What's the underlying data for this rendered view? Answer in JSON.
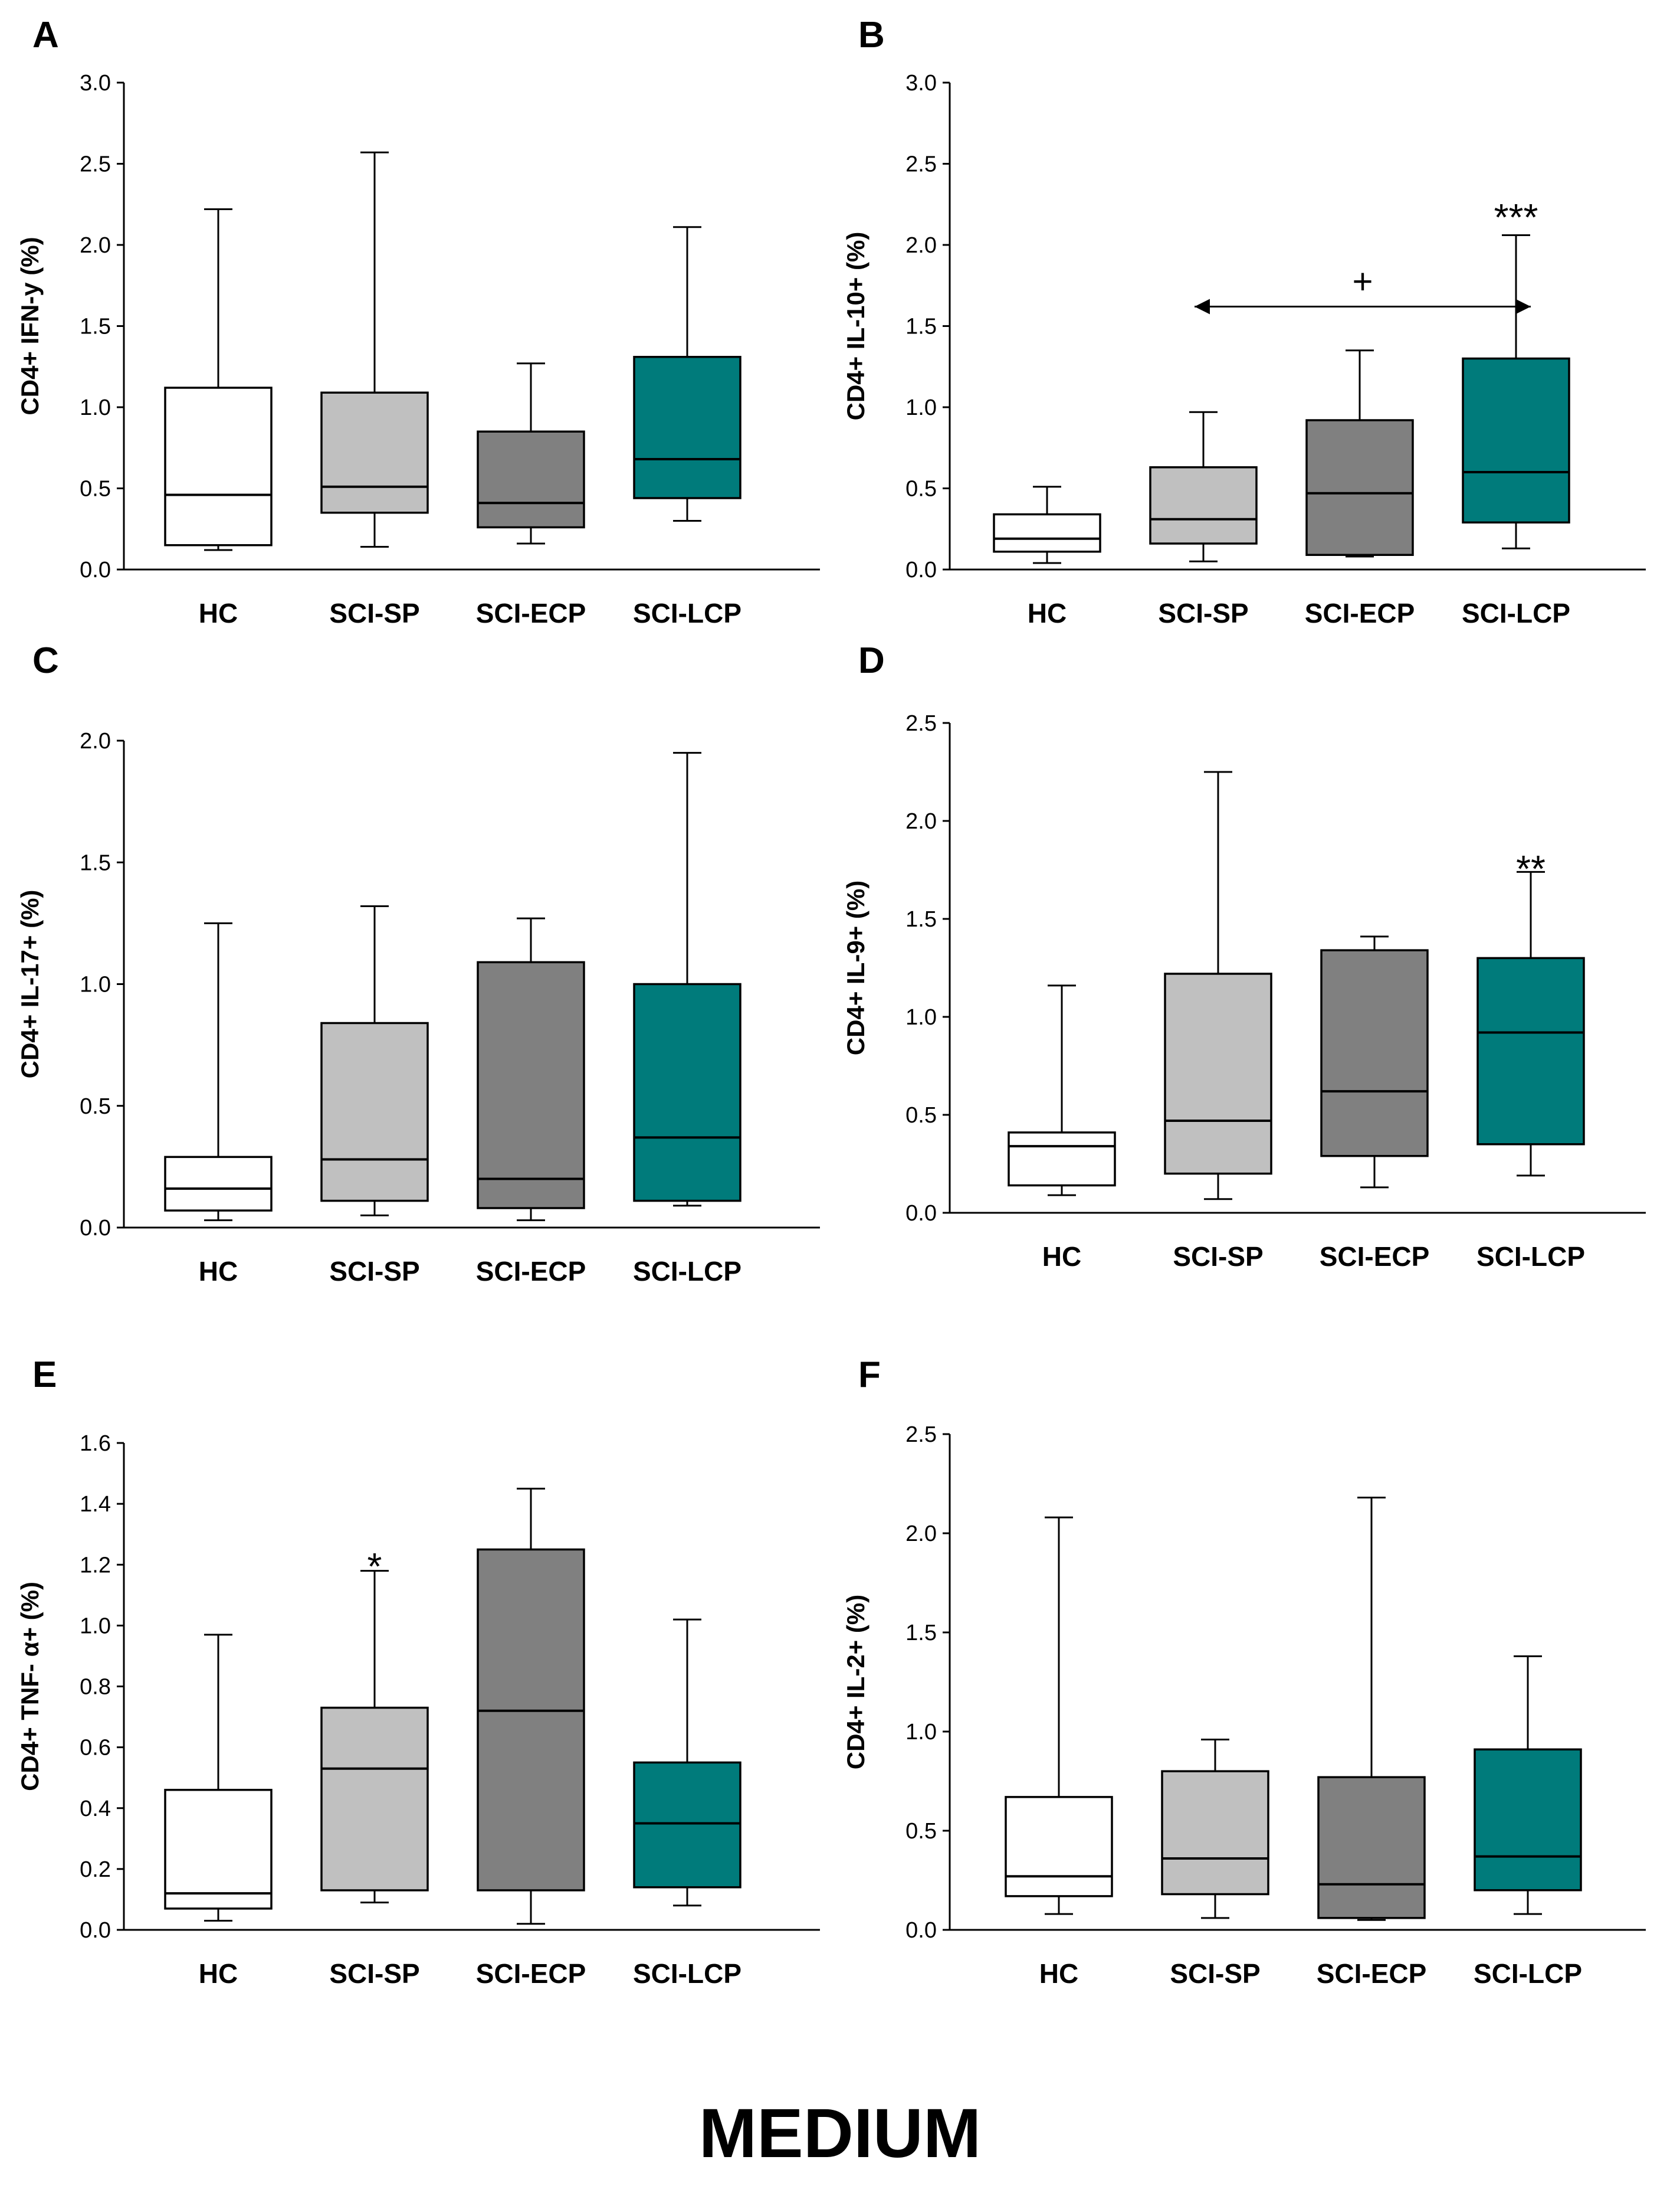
{
  "figure": {
    "footer": "MEDIUM"
  },
  "colors": {
    "HC": "#ffffff",
    "SCI-SP": "#c0c0c0",
    "SCI-ECP": "#808080",
    "SCI-LCP": "#007b7b",
    "ink": "#000000"
  },
  "chart_data": [
    {
      "panel": "A",
      "type": "box",
      "ylabel": "CD4+ IFN-y (%)",
      "ylim": [
        0,
        3.0
      ],
      "yticks": [
        "0.0",
        "0.5",
        "1.0",
        "1.5",
        "2.0",
        "2.5",
        "3.0"
      ],
      "categories": [
        "HC",
        "SCI-SP",
        "SCI-ECP",
        "SCI-LCP"
      ],
      "boxes": [
        {
          "min": 0.12,
          "q1": 0.15,
          "median": 0.46,
          "q3": 1.12,
          "max": 2.22
        },
        {
          "min": 0.14,
          "q1": 0.35,
          "median": 0.51,
          "q3": 1.09,
          "max": 2.57
        },
        {
          "min": 0.16,
          "q1": 0.26,
          "median": 0.41,
          "q3": 0.85,
          "max": 1.27
        },
        {
          "min": 0.3,
          "q1": 0.44,
          "median": 0.68,
          "q3": 1.31,
          "max": 2.11
        }
      ],
      "annotations": []
    },
    {
      "panel": "B",
      "type": "box",
      "ylabel": "CD4+ IL-10+ (%)",
      "ylim": [
        0,
        3.0
      ],
      "yticks": [
        "0.0",
        "0.5",
        "1.0",
        "1.5",
        "2.0",
        "2.5",
        "3.0"
      ],
      "categories": [
        "HC",
        "SCI-SP",
        "SCI-ECP",
        "SCI-LCP"
      ],
      "boxes": [
        {
          "min": 0.04,
          "q1": 0.11,
          "median": 0.19,
          "q3": 0.34,
          "max": 0.51
        },
        {
          "min": 0.05,
          "q1": 0.16,
          "median": 0.31,
          "q3": 0.63,
          "max": 0.97
        },
        {
          "min": 0.08,
          "q1": 0.09,
          "median": 0.47,
          "q3": 0.92,
          "max": 1.35
        },
        {
          "min": 0.13,
          "q1": 0.29,
          "median": 0.6,
          "q3": 1.3,
          "max": 2.06
        }
      ],
      "annotations": [
        {
          "type": "asterisk",
          "text": "***",
          "category": "SCI-LCP",
          "y": 2.2
        },
        {
          "type": "bracket",
          "text": "+",
          "from": "SCI-SP",
          "to": "SCI-LCP",
          "y": 1.62
        }
      ]
    },
    {
      "panel": "C",
      "type": "box",
      "ylabel": "CD4+ IL-17+ (%)",
      "ylim": [
        0,
        2.0
      ],
      "yticks": [
        "0.0",
        "0.5",
        "1.0",
        "1.5",
        "2.0"
      ],
      "categories": [
        "HC",
        "SCI-SP",
        "SCI-ECP",
        "SCI-LCP"
      ],
      "boxes": [
        {
          "min": 0.03,
          "q1": 0.07,
          "median": 0.16,
          "q3": 0.29,
          "max": 1.25
        },
        {
          "min": 0.05,
          "q1": 0.11,
          "median": 0.28,
          "q3": 0.84,
          "max": 1.32
        },
        {
          "min": 0.03,
          "q1": 0.08,
          "median": 0.2,
          "q3": 1.09,
          "max": 1.27
        },
        {
          "min": 0.09,
          "q1": 0.11,
          "median": 0.37,
          "q3": 1.0,
          "max": 1.95
        }
      ],
      "annotations": []
    },
    {
      "panel": "D",
      "type": "box",
      "ylabel": "CD4+ IL-9+ (%)",
      "ylim": [
        0,
        2.5
      ],
      "yticks": [
        "0.0",
        "0.5",
        "1.0",
        "1.5",
        "2.0",
        "2.5"
      ],
      "categories": [
        "HC",
        "SCI-SP",
        "SCI-ECP",
        "SCI-LCP"
      ],
      "boxes": [
        {
          "min": 0.09,
          "q1": 0.14,
          "median": 0.34,
          "q3": 0.41,
          "max": 1.16
        },
        {
          "min": 0.07,
          "q1": 0.2,
          "median": 0.47,
          "q3": 1.22,
          "max": 2.25
        },
        {
          "min": 0.13,
          "q1": 0.29,
          "median": 0.62,
          "q3": 1.34,
          "max": 1.41
        },
        {
          "min": 0.19,
          "q1": 0.35,
          "median": 0.92,
          "q3": 1.3,
          "max": 1.74
        }
      ],
      "annotations": [
        {
          "type": "asterisk",
          "text": "**",
          "category": "SCI-LCP",
          "y": 1.78
        }
      ]
    },
    {
      "panel": "E",
      "type": "box",
      "ylabel": "CD4+ TNF- α+ (%)",
      "ylim": [
        0,
        1.6
      ],
      "yticks": [
        "0.0",
        "0.2",
        "0.4",
        "0.6",
        "0.8",
        "1.0",
        "1.2",
        "1.4",
        "1.6"
      ],
      "categories": [
        "HC",
        "SCI-SP",
        "SCI-ECP",
        "SCI-LCP"
      ],
      "boxes": [
        {
          "min": 0.03,
          "q1": 0.07,
          "median": 0.12,
          "q3": 0.46,
          "max": 0.97
        },
        {
          "min": 0.09,
          "q1": 0.13,
          "median": 0.53,
          "q3": 0.73,
          "max": 1.18
        },
        {
          "min": 0.02,
          "q1": 0.13,
          "median": 0.72,
          "q3": 1.25,
          "max": 1.45
        },
        {
          "min": 0.08,
          "q1": 0.14,
          "median": 0.35,
          "q3": 0.55,
          "max": 1.02
        }
      ],
      "annotations": [
        {
          "type": "asterisk",
          "text": "*",
          "category": "SCI-SP",
          "y": 1.21
        }
      ]
    },
    {
      "panel": "F",
      "type": "box",
      "ylabel": "CD4+ IL-2+ (%)",
      "ylim": [
        0,
        2.5
      ],
      "yticks": [
        "0.0",
        "0.5",
        "1.0",
        "1.5",
        "2.0",
        "2.5"
      ],
      "categories": [
        "HC",
        "SCI-SP",
        "SCI-ECP",
        "SCI-LCP"
      ],
      "boxes": [
        {
          "min": 0.08,
          "q1": 0.17,
          "median": 0.27,
          "q3": 0.67,
          "max": 2.08
        },
        {
          "min": 0.06,
          "q1": 0.18,
          "median": 0.36,
          "q3": 0.8,
          "max": 0.96
        },
        {
          "min": 0.05,
          "q1": 0.06,
          "median": 0.23,
          "q3": 0.77,
          "max": 2.18
        },
        {
          "min": 0.08,
          "q1": 0.2,
          "median": 0.37,
          "q3": 0.91,
          "max": 1.38
        }
      ],
      "annotations": []
    }
  ]
}
